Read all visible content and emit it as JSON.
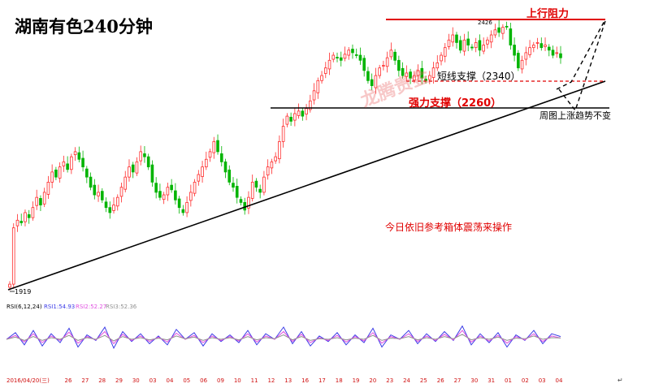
{
  "page": {
    "title": "湖南有色240分钟",
    "annotations": {
      "resistance": "上行阻力",
      "short_support": "短线支撑（2340）",
      "strong_support": "强力支撑（2260）",
      "weekly_trend": "周图上涨趋势不变",
      "operation_note": "今日依旧参考箱体震荡来操作",
      "high_label": "2426",
      "low_label": "1919",
      "watermark": "龙腾贵金"
    }
  },
  "chart_data": [
    {
      "type": "candlestick",
      "title": "湖南有色240分钟",
      "xlabel": "",
      "ylabel": "",
      "ylim": [
        1900,
        2450
      ],
      "x_tick_labels": [
        "2016/04/20(三)",
        "26",
        "27",
        "28",
        "29",
        "30",
        "03",
        "04",
        "05",
        "06",
        "09",
        "10",
        "11",
        "12",
        "13",
        "16",
        "17",
        "18",
        "19",
        "20",
        "23",
        "24",
        "25",
        "26",
        "27",
        "30",
        "31",
        "01",
        "02",
        "03",
        "04"
      ],
      "closes": [
        1919,
        2030,
        2045,
        2040,
        2060,
        2050,
        2070,
        2090,
        2075,
        2100,
        2120,
        2140,
        2130,
        2150,
        2160,
        2145,
        2170,
        2180,
        2165,
        2150,
        2130,
        2110,
        2095,
        2100,
        2085,
        2070,
        2060,
        2075,
        2090,
        2110,
        2130,
        2150,
        2140,
        2160,
        2180,
        2170,
        2150,
        2120,
        2100,
        2090,
        2095,
        2110,
        2105,
        2085,
        2070,
        2060,
        2080,
        2100,
        2120,
        2135,
        2150,
        2165,
        2180,
        2200,
        2180,
        2160,
        2140,
        2120,
        2110,
        2090,
        2080,
        2065,
        2090,
        2120,
        2110,
        2100,
        2130,
        2150,
        2160,
        2170,
        2200,
        2230,
        2250,
        2240,
        2255,
        2260,
        2250,
        2265,
        2280,
        2300,
        2320,
        2330,
        2345,
        2360,
        2370,
        2365,
        2360,
        2372,
        2380,
        2375,
        2370,
        2360,
        2340,
        2320,
        2310,
        2330,
        2345,
        2350,
        2365,
        2380,
        2360,
        2340,
        2330,
        2335,
        2325,
        2330,
        2340,
        2325,
        2320,
        2330,
        2345,
        2355,
        2370,
        2385,
        2400,
        2410,
        2395,
        2380,
        2400,
        2390,
        2385,
        2395,
        2380,
        2390,
        2400,
        2410,
        2420,
        2415,
        2425,
        2426,
        2390,
        2370,
        2345,
        2360,
        2375,
        2385,
        2390,
        2395,
        2385,
        2390,
        2380,
        2370,
        2375,
        2365
      ],
      "key_levels": [
        {
          "name": "上行阻力",
          "value": 2426
        },
        {
          "name": "短线支撑",
          "value": 2340
        },
        {
          "name": "强力支撑",
          "value": 2260
        }
      ]
    },
    {
      "type": "line",
      "title": "RSI(6,12,24)",
      "ylim": [
        0,
        100
      ],
      "series": [
        {
          "name": "RSI1",
          "last": 54.93,
          "color": "#3c3ce6",
          "values": [
            50,
            62,
            40,
            66,
            38,
            60,
            44,
            70,
            36,
            58,
            48,
            72,
            34,
            64,
            46,
            60,
            42,
            56,
            40,
            68,
            50,
            62,
            38,
            60,
            46,
            58,
            44,
            66,
            40,
            60,
            50,
            72,
            42,
            64,
            38,
            56,
            46,
            62,
            40,
            58,
            44,
            70,
            36,
            58,
            50,
            66,
            42,
            60,
            46,
            64,
            48,
            74,
            40,
            60,
            44,
            62,
            36,
            58,
            48,
            66,
            42,
            60,
            54.93
          ]
        },
        {
          "name": "RSI2",
          "last": 52.27,
          "color": "#e050e0",
          "values": [
            50,
            57,
            45,
            60,
            44,
            56,
            48,
            63,
            43,
            55,
            49,
            64,
            42,
            59,
            48,
            56,
            46,
            54,
            45,
            61,
            50,
            57,
            44,
            56,
            48,
            55,
            47,
            60,
            45,
            56,
            50,
            64,
            46,
            59,
            44,
            53,
            48,
            57,
            45,
            55,
            47,
            62,
            43,
            55,
            50,
            60,
            46,
            56,
            48,
            59,
            49,
            66,
            45,
            56,
            47,
            57,
            43,
            55,
            49,
            60,
            46,
            56,
            52.27
          ]
        },
        {
          "name": "RSI3",
          "last": 52.36,
          "color": "#909090",
          "values": [
            50,
            54,
            48,
            55,
            48,
            53,
            50,
            57,
            48,
            53,
            50,
            57,
            47,
            55,
            50,
            53,
            49,
            52,
            49,
            56,
            51,
            54,
            48,
            53,
            50,
            53,
            49,
            55,
            49,
            53,
            51,
            58,
            49,
            55,
            48,
            51,
            50,
            53,
            49,
            52,
            50,
            57,
            48,
            52,
            51,
            55,
            49,
            53,
            50,
            55,
            51,
            59,
            49,
            53,
            50,
            54,
            48,
            52,
            51,
            56,
            50,
            53,
            52.36
          ]
        }
      ]
    }
  ],
  "colors": {
    "up": "#ff2a2a",
    "down": "#00b400",
    "trendline": "#000000",
    "resistance": "#e00000",
    "support_dashed": "#e00000"
  }
}
